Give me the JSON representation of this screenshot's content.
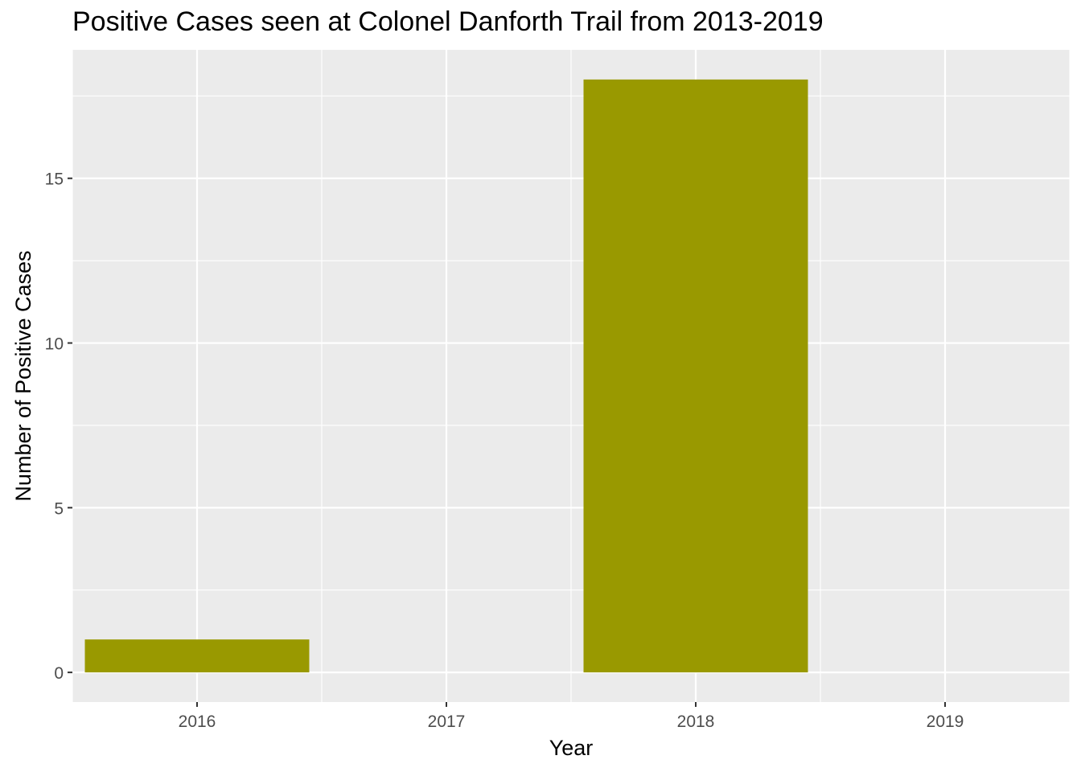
{
  "chart_data": {
    "type": "bar",
    "title": "Positive Cases seen at Colonel Danforth Trail from 2013-2019",
    "xlabel": "Year",
    "ylabel": "Number of Positive Cases",
    "categories": [
      "2016",
      "2017",
      "2018",
      "2019"
    ],
    "x_ticks": [
      2016,
      2017,
      2018,
      2019
    ],
    "bars": [
      {
        "x": 2016,
        "value": 1
      },
      {
        "x": 2018,
        "value": 18
      }
    ],
    "y_ticks": [
      0,
      5,
      10,
      15
    ],
    "xlim": [
      2015.5,
      2019.5
    ],
    "ylim": [
      -0.9,
      18.9
    ],
    "grid": true,
    "bar_color": "#999900",
    "panel_color": "#EBEBEB",
    "grid_color": "#FFFFFF",
    "legend": "none"
  }
}
